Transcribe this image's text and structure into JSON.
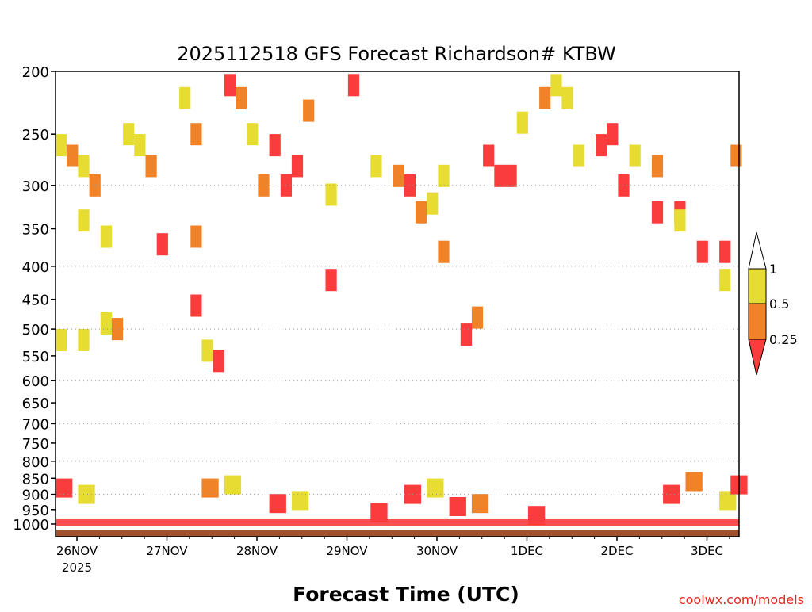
{
  "chart_data": {
    "type": "heatmap",
    "title": "2025112518 GFS Forecast Richardson# KTBW",
    "xlabel": "Forecast Time (UTC)",
    "ylabel": "",
    "credit": "coolwx.com/models",
    "x_ticks": [
      "26NOV",
      "27NOV",
      "28NOV",
      "29NOV",
      "30NOV",
      "1DEC",
      "2DEC",
      "3DEC"
    ],
    "x_year": "2025",
    "y_ticks": [
      "200",
      "250",
      "300",
      "350",
      "400",
      "450",
      "500",
      "550",
      "600",
      "650",
      "700",
      "750",
      "800",
      "850",
      "900",
      "950",
      "1000"
    ],
    "y_gridlines_at": [
      300,
      400,
      500,
      600,
      700,
      800,
      900
    ],
    "y_range": [
      200,
      1000
    ],
    "y_scale": "log-pressure (reversed)",
    "x_range": [
      "2025-11-25 18Z",
      "2025-12-03 09Z"
    ],
    "legend": {
      "placement": "right",
      "labels": [
        "1",
        "0.5",
        "0.25"
      ],
      "bins": [
        {
          "range": "> 1",
          "color": "#ffffff"
        },
        {
          "range": "0.5 - 1",
          "color": "#e6dc32"
        },
        {
          "range": "0.25 - 0.5",
          "color": "#f08228"
        },
        {
          "range": "< 0.25",
          "color": "#fa3c3c"
        }
      ]
    },
    "colors": {
      "yellow": "#e6dc32",
      "orange": "#f08228",
      "red": "#fa3c3c",
      "ground": "#a0522d",
      "grid": "#999999"
    },
    "cells": [
      {
        "x": "2025-11-25T18",
        "p": 260,
        "v": "0.5-1"
      },
      {
        "x": "2025-11-25T21",
        "p": 270,
        "v": "0.25-0.5"
      },
      {
        "x": "2025-11-26T00",
        "p": 340,
        "v": "0.5-1"
      },
      {
        "x": "2025-11-26T06",
        "p": 360,
        "v": "0.5-1"
      },
      {
        "x": "2025-11-26T00",
        "p": 280,
        "v": "0.5-1"
      },
      {
        "x": "2025-11-26T03",
        "p": 300,
        "v": "0.25-0.5"
      },
      {
        "x": "2025-11-26T06",
        "p": 490,
        "v": "0.5-1"
      },
      {
        "x": "2025-11-26T09",
        "p": 500,
        "v": "0.25-0.5"
      },
      {
        "x": "2025-11-25T18",
        "p": 520,
        "v": "0.5-1"
      },
      {
        "x": "2025-11-26T00",
        "p": 520,
        "v": "0.5-1"
      },
      {
        "x": "2025-11-26T12",
        "p": 250,
        "v": "0.5-1"
      },
      {
        "x": "2025-11-26T15",
        "p": 260,
        "v": "0.5-1"
      },
      {
        "x": "2025-11-26T18",
        "p": 280,
        "v": "0.25-0.5"
      },
      {
        "x": "2025-11-26T21",
        "p": 370,
        "v": "<0.25"
      },
      {
        "x": "2025-11-27T03",
        "p": 220,
        "v": "0.5-1"
      },
      {
        "x": "2025-11-27T06",
        "p": 250,
        "v": "0.25-0.5"
      },
      {
        "x": "2025-11-27T06",
        "p": 360,
        "v": "0.25-0.5"
      },
      {
        "x": "2025-11-27T06",
        "p": 460,
        "v": "<0.25"
      },
      {
        "x": "2025-11-27T09",
        "p": 540,
        "v": "0.5-1"
      },
      {
        "x": "2025-11-27T12",
        "p": 560,
        "v": "<0.25"
      },
      {
        "x": "2025-11-27T15",
        "p": 210,
        "v": "<0.25"
      },
      {
        "x": "2025-11-27T18",
        "p": 220,
        "v": "0.25-0.5"
      },
      {
        "x": "2025-11-27T21",
        "p": 250,
        "v": "0.5-1"
      },
      {
        "x": "2025-11-28T03",
        "p": 260,
        "v": "<0.25"
      },
      {
        "x": "2025-11-28T06",
        "p": 300,
        "v": "<0.25"
      },
      {
        "x": "2025-11-28T09",
        "p": 280,
        "v": "<0.25"
      },
      {
        "x": "2025-11-28T00",
        "p": 300,
        "v": "0.25-0.5"
      },
      {
        "x": "2025-11-28T12",
        "p": 230,
        "v": "0.25-0.5"
      },
      {
        "x": "2025-11-28T18",
        "p": 310,
        "v": "0.5-1"
      },
      {
        "x": "2025-11-28T18",
        "p": 420,
        "v": "<0.25"
      },
      {
        "x": "2025-11-29T00",
        "p": 210,
        "v": "<0.25"
      },
      {
        "x": "2025-11-29T06",
        "p": 280,
        "v": "0.5-1"
      },
      {
        "x": "2025-11-29T12",
        "p": 290,
        "v": "0.25-0.5"
      },
      {
        "x": "2025-11-29T15",
        "p": 300,
        "v": "<0.25"
      },
      {
        "x": "2025-11-29T18",
        "p": 330,
        "v": "0.25-0.5"
      },
      {
        "x": "2025-11-29T21",
        "p": 320,
        "v": "0.5-1"
      },
      {
        "x": "2025-11-30T00",
        "p": 290,
        "v": "0.5-1"
      },
      {
        "x": "2025-11-30T00",
        "p": 380,
        "v": "0.25-0.5"
      },
      {
        "x": "2025-11-30T06",
        "p": 510,
        "v": "<0.25"
      },
      {
        "x": "2025-11-30T09",
        "p": 480,
        "v": "0.25-0.5"
      },
      {
        "x": "2025-11-30T12",
        "p": 270,
        "v": "<0.25"
      },
      {
        "x": "2025-11-30T15",
        "p": 290,
        "v": "<0.25"
      },
      {
        "x": "2025-11-30T18",
        "p": 290,
        "v": "<0.25"
      },
      {
        "x": "2025-11-30T21",
        "p": 240,
        "v": "0.5-1"
      },
      {
        "x": "2025-12-01T03",
        "p": 220,
        "v": "0.25-0.5"
      },
      {
        "x": "2025-12-01T06",
        "p": 210,
        "v": "0.5-1"
      },
      {
        "x": "2025-12-01T09",
        "p": 220,
        "v": "0.5-1"
      },
      {
        "x": "2025-12-01T12",
        "p": 270,
        "v": "0.5-1"
      },
      {
        "x": "2025-12-01T18",
        "p": 260,
        "v": "<0.25"
      },
      {
        "x": "2025-12-01T21",
        "p": 250,
        "v": "<0.25"
      },
      {
        "x": "2025-12-02T00",
        "p": 300,
        "v": "<0.25"
      },
      {
        "x": "2025-12-02T03",
        "p": 270,
        "v": "0.5-1"
      },
      {
        "x": "2025-12-02T09",
        "p": 280,
        "v": "0.25-0.5"
      },
      {
        "x": "2025-12-02T09",
        "p": 330,
        "v": "<0.25"
      },
      {
        "x": "2025-12-02T15",
        "p": 330,
        "v": "<0.25"
      },
      {
        "x": "2025-12-02T15",
        "p": 340,
        "v": "0.5-1"
      },
      {
        "x": "2025-12-02T21",
        "p": 380,
        "v": "<0.25"
      },
      {
        "x": "2025-12-03T03",
        "p": 380,
        "v": "<0.25"
      },
      {
        "x": "2025-12-03T03",
        "p": 420,
        "v": "0.5-1"
      },
      {
        "x": "2025-12-03T06",
        "p": 270,
        "v": "0.25-0.5"
      }
    ]
  }
}
